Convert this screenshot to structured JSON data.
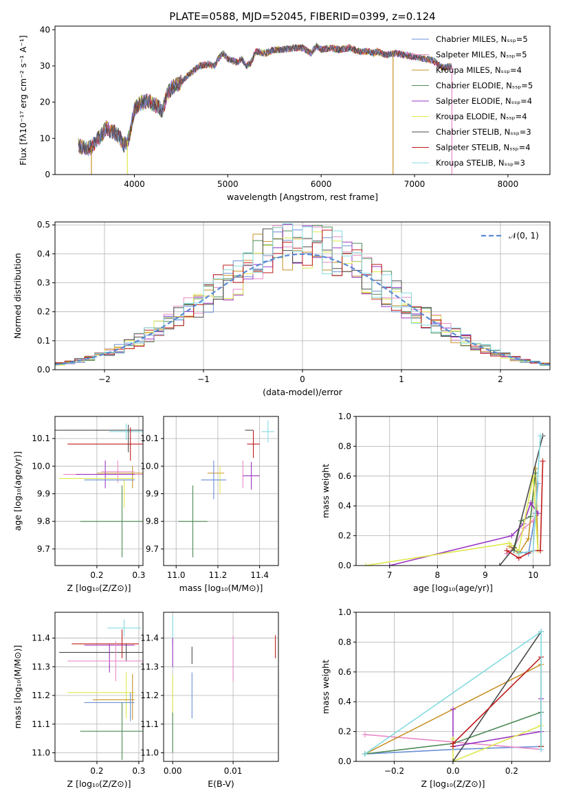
{
  "figure_title": "PLATE=0588, MJD=52045, FIBERID=0399, z=0.124",
  "model_colors": [
    "#6a8fd6",
    "#e889c6",
    "#c79226",
    "#4d8a55",
    "#9a35c2",
    "#dde84a",
    "#4a4a4a",
    "#c01a1a",
    "#84dbe0"
  ],
  "chart_data": [
    {
      "id": "spectrum",
      "type": "line",
      "title": "PLATE=0588, MJD=52045, FIBERID=0399, z=0.124",
      "xlabel": "wavelength [Angstrom, rest frame]",
      "ylabel": "Flux [fλ10⁻¹⁷ erg cm⁻² s⁻¹ A⁻¹]",
      "xlim": [
        3150,
        8450
      ],
      "ylim": [
        0,
        41
      ],
      "xticks": [
        "4000",
        "5000",
        "6000",
        "7000",
        "8000"
      ],
      "yticks": [
        "0",
        "10",
        "20",
        "30",
        "40"
      ],
      "legend_position": "upper right",
      "series": [
        {
          "name": "Chabrier MILES, Nₛₛₚ=5"
        },
        {
          "name": "Salpeter MILES, Nₛₛₚ=5"
        },
        {
          "name": "Kroupa MILES, Nₛₛₚ=4"
        },
        {
          "name": "Chabrier ELODIE, Nₛₛₚ=5"
        },
        {
          "name": "Salpeter ELODIE, Nₛₛₚ=4"
        },
        {
          "name": "Kroupa ELODIE, Nₛₛₚ=4"
        },
        {
          "name": "Chabrier STELIB, Nₛₛₚ=3"
        },
        {
          "name": "Salpeter STELIB, Nₛₛₚ=4"
        },
        {
          "name": "Kroupa STELIB, Nₛₛₚ=3"
        }
      ],
      "spectrum_points": [
        [
          3400,
          8.0
        ],
        [
          3450,
          7.5
        ],
        [
          3500,
          7.0
        ],
        [
          3550,
          7.8
        ],
        [
          3600,
          9.5
        ],
        [
          3650,
          11
        ],
        [
          3700,
          13
        ],
        [
          3750,
          12
        ],
        [
          3800,
          11.5
        ],
        [
          3850,
          10
        ],
        [
          3880,
          8
        ],
        [
          3920,
          9
        ],
        [
          3950,
          11
        ],
        [
          4000,
          18
        ],
        [
          4050,
          19.5
        ],
        [
          4100,
          20
        ],
        [
          4150,
          20.5
        ],
        [
          4200,
          19.5
        ],
        [
          4250,
          19
        ],
        [
          4300,
          17.5
        ],
        [
          4350,
          22
        ],
        [
          4400,
          24
        ],
        [
          4500,
          25.5
        ],
        [
          4600,
          28
        ],
        [
          4700,
          30
        ],
        [
          4800,
          30.5
        ],
        [
          4860,
          30
        ],
        [
          4900,
          32
        ],
        [
          4950,
          33.5
        ],
        [
          5000,
          32
        ],
        [
          5100,
          31
        ],
        [
          5150,
          32
        ],
        [
          5200,
          30
        ],
        [
          5250,
          31
        ],
        [
          5300,
          34
        ],
        [
          5400,
          33.5
        ],
        [
          5500,
          34.5
        ],
        [
          5600,
          34.5
        ],
        [
          5700,
          35
        ],
        [
          5800,
          35
        ],
        [
          5890,
          33.5
        ],
        [
          5950,
          35.5
        ],
        [
          6000,
          34.5
        ],
        [
          6100,
          35
        ],
        [
          6200,
          34.5
        ],
        [
          6300,
          35
        ],
        [
          6400,
          34
        ],
        [
          6500,
          34
        ],
        [
          6563,
          33.5
        ],
        [
          6600,
          34
        ],
        [
          6700,
          33
        ],
        [
          6800,
          33.5
        ],
        [
          6900,
          33
        ],
        [
          7000,
          32.5
        ],
        [
          7100,
          32
        ],
        [
          7200,
          31.5
        ],
        [
          7300,
          29.5
        ],
        [
          7400,
          30
        ]
      ]
    },
    {
      "id": "residuals",
      "type": "line",
      "xlabel": "(data-model)/error",
      "ylabel": "Normed distribution",
      "xlim": [
        -2.5,
        2.5
      ],
      "ylim": [
        0,
        0.51
      ],
      "xticks": [
        "−2",
        "−1",
        "0",
        "1",
        "2"
      ],
      "yticks": [
        "0.0",
        "0.1",
        "0.2",
        "0.3",
        "0.4",
        "0.5"
      ],
      "grid": true,
      "legend_position": "upper right",
      "reference_curve": {
        "name": "𝒩(0, 1)",
        "mean": 0,
        "sigma": 1
      },
      "bin_width": 0.1
    },
    {
      "id": "age_vs_Z",
      "type": "scatter",
      "xlabel": "Z [log₁₀(Z/Z⊙)]",
      "ylabel": "age  [log₁₀(age/yr)]",
      "xlim": [
        0.1,
        0.31
      ],
      "ylim": [
        9.64,
        10.18
      ],
      "xticks": [
        "0.2",
        "0.3"
      ],
      "yticks": [
        "9.7",
        "9.8",
        "9.9",
        "10.0",
        "10.1"
      ],
      "grid": true,
      "points": [
        {
          "x": 0.23,
          "xerr": 0.13,
          "y": 10.13,
          "yerr": 0.0,
          "series": 6
        },
        {
          "x": 0.27,
          "xerr": 0.04,
          "y": 10.125,
          "yerr": 0.03,
          "series": 8
        },
        {
          "x": 0.275,
          "xerr": 0.0,
          "y": 10.1,
          "yerr": 0.05,
          "series": 6
        },
        {
          "x": 0.22,
          "xerr": 0.09,
          "y": 10.08,
          "yerr": 0.0,
          "series": 7
        },
        {
          "x": 0.28,
          "xerr": 0.0,
          "y": 10.08,
          "yerr": 0.06,
          "series": 7
        },
        {
          "x": 0.23,
          "xerr": 0.11,
          "y": 9.97,
          "yerr": 0.0,
          "series": 1
        },
        {
          "x": 0.26,
          "xerr": 0.06,
          "y": 9.975,
          "yerr": 0.0,
          "series": 2
        },
        {
          "x": 0.285,
          "xerr": 0.0,
          "y": 9.96,
          "yerr": 0.04,
          "series": 2
        },
        {
          "x": 0.22,
          "xerr": 0.07,
          "y": 9.97,
          "yerr": 0.05,
          "series": 4
        },
        {
          "x": 0.25,
          "xerr": 0.04,
          "y": 9.98,
          "yerr": 0.04,
          "series": 1
        },
        {
          "x": 0.2,
          "xerr": 0.09,
          "y": 9.955,
          "yerr": 0.0,
          "series": 5
        },
        {
          "x": 0.265,
          "xerr": 0.0,
          "y": 9.9,
          "yerr": 0.05,
          "series": 5
        },
        {
          "x": 0.23,
          "xerr": 0.06,
          "y": 9.95,
          "yerr": 0.0,
          "series": 0
        },
        {
          "x": 0.26,
          "xerr": 0.1,
          "y": 9.8,
          "yerr": 0.13,
          "series": 3
        }
      ]
    },
    {
      "id": "age_vs_mass",
      "type": "scatter",
      "xlabel": "mass [log₁₀(M/M⊙)]",
      "xlim": [
        10.94,
        11.49
      ],
      "ylim": [
        9.64,
        10.18
      ],
      "xticks": [
        "11.0",
        "11.2",
        "11.4"
      ],
      "yticks": [
        "9.7",
        "9.8",
        "9.9",
        "10.0",
        "10.1"
      ],
      "grid": true,
      "points": [
        {
          "x": 11.35,
          "xerr": 0.02,
          "y": 10.13,
          "yerr": 0.0,
          "series": 6
        },
        {
          "x": 11.44,
          "xerr": 0.03,
          "y": 10.125,
          "yerr": 0.04,
          "series": 8
        },
        {
          "x": 11.37,
          "xerr": 0.03,
          "y": 10.08,
          "yerr": 0.05,
          "series": 7
        },
        {
          "x": 11.32,
          "xerr": 0.0,
          "y": 9.97,
          "yerr": 0.05,
          "series": 1
        },
        {
          "x": 11.19,
          "xerr": 0.04,
          "y": 9.975,
          "yerr": 0.0,
          "series": 2
        },
        {
          "x": 11.36,
          "xerr": 0.04,
          "y": 9.965,
          "yerr": 0.05,
          "series": 4
        },
        {
          "x": 11.21,
          "xerr": 0.0,
          "y": 9.95,
          "yerr": 0.05,
          "series": 5
        },
        {
          "x": 11.18,
          "xerr": 0.06,
          "y": 9.95,
          "yerr": 0.07,
          "series": 0
        },
        {
          "x": 11.08,
          "xerr": 0.07,
          "y": 9.8,
          "yerr": 0.13,
          "series": 3
        }
      ]
    },
    {
      "id": "weight_vs_age",
      "type": "line",
      "xlabel": "age  [log₁₀(age/yr)]",
      "ylabel": "mass weight",
      "xlim": [
        6.3,
        10.35
      ],
      "ylim": [
        0,
        1
      ],
      "xticks": [
        "7",
        "8",
        "9",
        "10"
      ],
      "yticks": [
        "0.0",
        "0.2",
        "0.4",
        "0.6",
        "0.8",
        "1.0"
      ],
      "grid": true,
      "series": [
        {
          "name": "Chabrier MILES",
          "x": [
            9.6,
            9.9,
            10.05,
            10.1
          ],
          "y": [
            0.1,
            0.08,
            0.35,
            0.55
          ]
        },
        {
          "name": "Salpeter MILES",
          "x": [
            9.45,
            9.6,
            9.8,
            10.0,
            10.1
          ],
          "y": [
            0.08,
            0.12,
            0.25,
            0.3,
            0.35
          ]
        },
        {
          "name": "Kroupa MILES",
          "x": [
            9.5,
            9.7,
            9.9,
            10.05,
            10.1
          ],
          "y": [
            0.13,
            0.08,
            0.18,
            0.65,
            0.1
          ]
        },
        {
          "name": "Chabrier ELODIE",
          "x": [
            9.6,
            9.75,
            9.95,
            10.05
          ],
          "y": [
            0.1,
            0.3,
            0.33,
            0.62
          ]
        },
        {
          "name": "Salpeter ELODIE",
          "x": [
            7.0,
            9.55,
            9.8,
            9.95,
            10.1
          ],
          "y": [
            0.0,
            0.2,
            0.28,
            0.42,
            0.35
          ]
        },
        {
          "name": "Kroupa ELODIE",
          "x": [
            6.5,
            9.5,
            9.7,
            10.0,
            10.1
          ],
          "y": [
            0.0,
            0.15,
            0.1,
            0.6,
            0.1
          ]
        },
        {
          "name": "Chabrier STELIB",
          "x": [
            9.3,
            9.6,
            10.2
          ],
          "y": [
            0.0,
            0.12,
            0.87
          ]
        },
        {
          "name": "Salpeter STELIB",
          "x": [
            9.45,
            9.7,
            10.0,
            10.15,
            10.2
          ],
          "y": [
            0.1,
            0.05,
            0.1,
            0.1,
            0.7
          ]
        },
        {
          "name": "Kroupa STELIB",
          "x": [
            9.7,
            10.0,
            10.15
          ],
          "y": [
            0.08,
            0.1,
            0.87
          ]
        }
      ]
    },
    {
      "id": "mass_vs_Z",
      "type": "scatter",
      "xlabel": "Z [log₁₀(Z/Z⊙)]",
      "ylabel": "mass [log₁₀(M/M⊙)]",
      "xlim": [
        0.1,
        0.31
      ],
      "ylim": [
        10.97,
        11.49
      ],
      "xticks": [
        "0.2",
        "0.3"
      ],
      "yticks": [
        "11.0",
        "11.1",
        "11.2",
        "11.3",
        "11.4"
      ],
      "grid": true,
      "points": [
        {
          "x": 0.265,
          "xerr": 0.04,
          "y": 11.435,
          "yerr": 0.03,
          "series": 8
        },
        {
          "x": 0.22,
          "xerr": 0.08,
          "y": 11.38,
          "yerr": 0.0,
          "series": 7
        },
        {
          "x": 0.26,
          "xerr": 0.0,
          "y": 11.38,
          "yerr": 0.05,
          "series": 7
        },
        {
          "x": 0.23,
          "xerr": 0.06,
          "y": 11.375,
          "yerr": 0.0,
          "series": 4
        },
        {
          "x": 0.23,
          "xerr": 0.0,
          "y": 11.33,
          "yerr": 0.05,
          "series": 4
        },
        {
          "x": 0.21,
          "xerr": 0.1,
          "y": 11.35,
          "yerr": 0.0,
          "series": 6
        },
        {
          "x": 0.27,
          "xerr": 0.0,
          "y": 11.35,
          "yerr": 0.03,
          "series": 6
        },
        {
          "x": 0.23,
          "xerr": 0.1,
          "y": 11.32,
          "yerr": 0.0,
          "series": 1
        },
        {
          "x": 0.245,
          "xerr": 0.0,
          "y": 11.32,
          "yerr": 0.07,
          "series": 1
        },
        {
          "x": 0.21,
          "xerr": 0.08,
          "y": 11.21,
          "yerr": 0.0,
          "series": 5
        },
        {
          "x": 0.27,
          "xerr": 0.0,
          "y": 11.2,
          "yerr": 0.08,
          "series": 5
        },
        {
          "x": 0.285,
          "xerr": 0.0,
          "y": 11.195,
          "yerr": 0.08,
          "series": 2
        },
        {
          "x": 0.24,
          "xerr": 0.05,
          "y": 11.185,
          "yerr": 0.0,
          "series": 2
        },
        {
          "x": 0.23,
          "xerr": 0.06,
          "y": 11.175,
          "yerr": 0.0,
          "series": 0
        },
        {
          "x": 0.28,
          "xerr": 0.0,
          "y": 11.16,
          "yerr": 0.05,
          "series": 0
        },
        {
          "x": 0.26,
          "xerr": 0.1,
          "y": 11.075,
          "yerr": 0.0,
          "series": 3
        },
        {
          "x": 0.26,
          "xerr": 0.0,
          "y": 11.075,
          "yerr": 0.1,
          "series": 3
        }
      ]
    },
    {
      "id": "mass_vs_EBV",
      "type": "scatter",
      "xlabel": "E(B-V)",
      "xlim": [
        -0.0015,
        0.0175
      ],
      "ylim": [
        10.97,
        11.49
      ],
      "xticks": [
        "0.00",
        "0.01"
      ],
      "yticks": [
        "11.0",
        "11.1",
        "11.2",
        "11.3",
        "11.4"
      ],
      "grid": true,
      "points": [
        {
          "x": 0.0,
          "xerr": 0.0,
          "y": 11.43,
          "yerr": 0.05,
          "series": 8
        },
        {
          "x": 0.0,
          "xerr": 0.0,
          "y": 11.35,
          "yerr": 0.05,
          "series": 4
        },
        {
          "x": 0.0,
          "xerr": 0.0,
          "y": 11.2,
          "yerr": 0.07,
          "series": 5
        },
        {
          "x": 0.0,
          "xerr": 0.0,
          "y": 11.07,
          "yerr": 0.07,
          "series": 3
        },
        {
          "x": 0.0032,
          "xerr": 0.0,
          "y": 11.34,
          "yerr": 0.03,
          "series": 6
        },
        {
          "x": 0.0032,
          "xerr": 0.0,
          "y": 11.2,
          "yerr": 0.08,
          "series": 0
        },
        {
          "x": 0.01,
          "xerr": 0.0,
          "y": 11.33,
          "yerr": 0.08,
          "series": 1
        },
        {
          "x": 0.017,
          "xerr": 0.0,
          "y": 11.37,
          "yerr": 0.04,
          "series": 7
        }
      ]
    },
    {
      "id": "weight_vs_Z",
      "type": "line",
      "xlabel": "Z [log₁₀(Z/Z⊙)]",
      "ylabel": "mass weight",
      "xlim": [
        -0.33,
        0.33
      ],
      "ylim": [
        0,
        1
      ],
      "xticks": [
        "−0.2",
        "0.0",
        "0.2"
      ],
      "yticks": [
        "0.0",
        "0.2",
        "0.4",
        "0.6",
        "0.8",
        "1.0"
      ],
      "grid": true,
      "series": [
        {
          "name": "Chabrier MILES",
          "x": [
            -0.3,
            0.0,
            0.3
          ],
          "y": [
            0.05,
            0.08,
            0.1
          ]
        },
        {
          "name": "Salpeter MILES",
          "x": [
            -0.3,
            0.3,
            0.3
          ],
          "y": [
            0.18,
            0.08,
            0.1
          ]
        },
        {
          "name": "Kroupa MILES",
          "x": [
            -0.3,
            0.3,
            0.3
          ],
          "y": [
            0.05,
            0.65,
            0.1
          ]
        },
        {
          "name": "Chabrier ELODIE",
          "x": [
            -0.3,
            0.0,
            0.3,
            0.3
          ],
          "y": [
            0.05,
            0.12,
            0.33,
            0.1
          ]
        },
        {
          "name": "Salpeter ELODIE",
          "x": [
            0.0,
            0.0,
            0.3,
            0.3
          ],
          "y": [
            0.35,
            0.1,
            0.2,
            0.42
          ]
        },
        {
          "name": "Kroupa ELODIE",
          "x": [
            0.0,
            0.0,
            0.3
          ],
          "y": [
            0.15,
            0.0,
            0.24
          ]
        },
        {
          "name": "Chabrier STELIB",
          "x": [
            0.0,
            0.3
          ],
          "y": [
            0.0,
            0.87
          ]
        },
        {
          "name": "Salpeter STELIB",
          "x": [
            0.0,
            0.0,
            0.3,
            0.3
          ],
          "y": [
            0.1,
            0.12,
            0.7,
            0.1
          ]
        },
        {
          "name": "Kroupa STELIB",
          "x": [
            -0.3,
            0.3,
            0.3
          ],
          "y": [
            0.05,
            0.87,
            0.08
          ]
        }
      ]
    }
  ]
}
